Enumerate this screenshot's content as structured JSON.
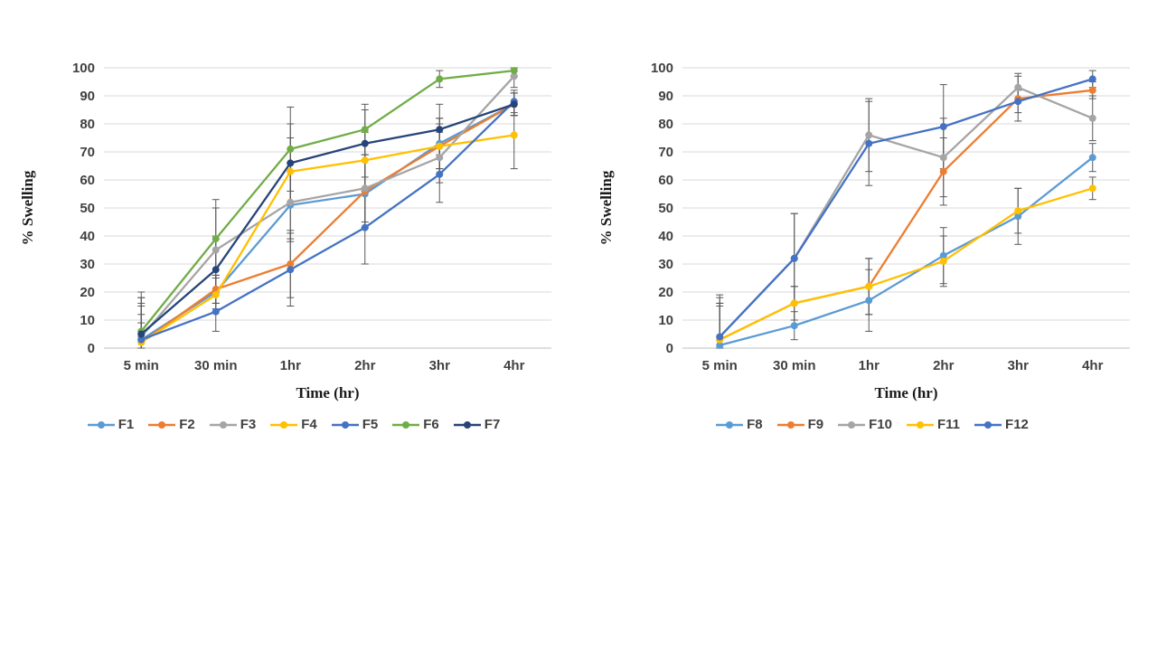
{
  "page": {
    "background": "#ffffff"
  },
  "styles": {
    "grid_color": "#D9D9D9",
    "axis_line_color": "#BFBFBF",
    "tick_text_color": "#404040",
    "error_bar_color": "#595959"
  },
  "chart_data": [
    {
      "type": "line",
      "title": "",
      "xlabel": "Time (hr)",
      "ylabel": "% Swelling",
      "ylim": [
        0,
        100
      ],
      "ytick_step": 10,
      "grid": true,
      "legend_position": "bottom",
      "error_bars": true,
      "categories": [
        "5 min",
        "30 min",
        "1hr",
        "2hr",
        "3hr",
        "4hr"
      ],
      "series": [
        {
          "name": "F1",
          "color": "#5B9BD5",
          "values": [
            3,
            20,
            51,
            55,
            73,
            87
          ],
          "errors": [
            15,
            6,
            12,
            12,
            9,
            4
          ]
        },
        {
          "name": "F2",
          "color": "#ED7D31",
          "values": [
            2,
            21,
            30,
            56,
            72,
            87
          ],
          "errors": [
            14,
            5,
            12,
            13,
            10,
            4
          ]
        },
        {
          "name": "F3",
          "color": "#A5A5A5",
          "values": [
            4,
            35,
            52,
            57,
            68,
            97
          ],
          "errors": [
            16,
            15,
            14,
            12,
            9,
            4
          ]
        },
        {
          "name": "F4",
          "color": "#FFC000",
          "values": [
            2,
            19,
            63,
            67,
            72,
            76
          ],
          "errors": [
            10,
            6,
            12,
            10,
            8,
            12
          ]
        },
        {
          "name": "F5",
          "color": "#4472C4",
          "values": [
            3,
            13,
            28,
            43,
            62,
            88
          ],
          "errors": [
            12,
            7,
            13,
            13,
            10,
            4
          ]
        },
        {
          "name": "F6",
          "color": "#70AD47",
          "values": [
            6,
            39,
            71,
            78,
            96,
            99
          ],
          "errors": [
            3,
            14,
            15,
            9,
            3,
            2
          ]
        },
        {
          "name": "F7",
          "color": "#264478",
          "values": [
            5,
            28,
            66,
            73,
            78,
            87
          ],
          "errors": [
            13,
            12,
            14,
            12,
            9,
            4
          ]
        }
      ]
    },
    {
      "type": "line",
      "title": "",
      "xlabel": "Time (hr)",
      "ylabel": "% Swelling",
      "ylim": [
        0,
        100
      ],
      "ytick_step": 10,
      "grid": true,
      "legend_position": "bottom",
      "error_bars": true,
      "categories": [
        "5 min",
        "30 min",
        "1hr",
        "2hr",
        "3hr",
        "4hr"
      ],
      "series": [
        {
          "name": "F8",
          "color": "#5B9BD5",
          "values": [
            1,
            8,
            17,
            33,
            47,
            68
          ],
          "errors": [
            15,
            5,
            11,
            10,
            10,
            5
          ]
        },
        {
          "name": "F9",
          "color": "#ED7D31",
          "values": [
            3,
            16,
            22,
            63,
            89,
            92
          ],
          "errors": [
            13,
            6,
            10,
            12,
            8,
            3
          ]
        },
        {
          "name": "F10",
          "color": "#A5A5A5",
          "values": [
            4,
            32,
            76,
            68,
            93,
            82
          ],
          "errors": [
            15,
            16,
            13,
            14,
            5,
            8
          ]
        },
        {
          "name": "F11",
          "color": "#FFC000",
          "values": [
            3,
            16,
            22,
            31,
            49,
            57
          ],
          "errors": [
            12,
            6,
            10,
            9,
            8,
            4
          ]
        },
        {
          "name": "F12",
          "color": "#4472C4",
          "values": [
            4,
            32,
            73,
            79,
            88,
            96
          ],
          "errors": [
            14,
            16,
            15,
            15,
            4,
            3
          ]
        }
      ]
    }
  ]
}
